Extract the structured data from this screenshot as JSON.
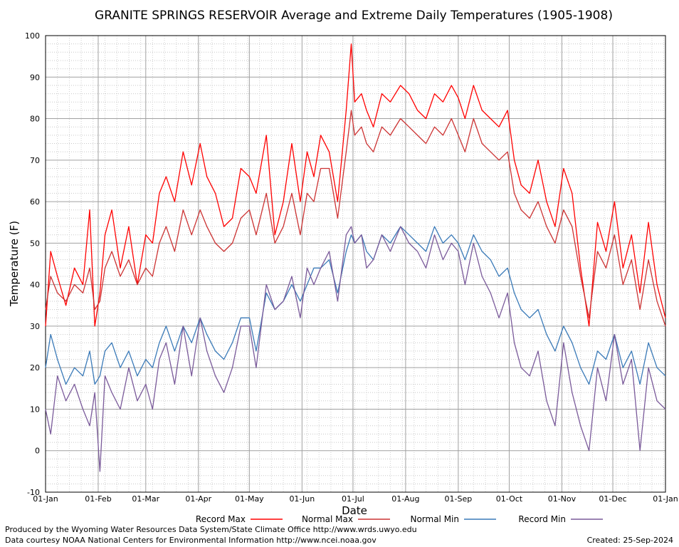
{
  "footer": {
    "produced_by": "Produced by the Wyoming Water Resources Data System/State Climate Office http://www.wrds.uwyo.edu",
    "courtesy": "Data courtesy NOAA National Centers for Environmental Information http://www.ncei.noaa.gov",
    "created": "Created:  25-Sep-2024"
  },
  "colors": {
    "record_max": "#ff0000",
    "normal_max": "#cc3333",
    "normal_min": "#3a7ab8",
    "record_min": "#7a5a9a",
    "grid": "#a0a0a0"
  },
  "chart_data": {
    "type": "line",
    "title": "GRANITE SPRINGS RESERVOIR Average and Extreme Daily Temperatures (1905-1908)",
    "xlabel": "Date",
    "ylabel": "Temperature (F)",
    "ylim": [
      -10,
      100
    ],
    "yticks": [
      -10,
      0,
      10,
      20,
      30,
      40,
      50,
      60,
      70,
      80,
      90,
      100
    ],
    "xlim": [
      1,
      366
    ],
    "xticks": [
      {
        "day": 1,
        "label": "01-Jan"
      },
      {
        "day": 32,
        "label": "01-Feb"
      },
      {
        "day": 60,
        "label": "01-Mar"
      },
      {
        "day": 91,
        "label": "01-Apr"
      },
      {
        "day": 121,
        "label": "01-May"
      },
      {
        "day": 152,
        "label": "01-Jun"
      },
      {
        "day": 182,
        "label": "01-Jul"
      },
      {
        "day": 213,
        "label": "01-Aug"
      },
      {
        "day": 244,
        "label": "01-Sep"
      },
      {
        "day": 274,
        "label": "01-Oct"
      },
      {
        "day": 305,
        "label": "01-Nov"
      },
      {
        "day": 335,
        "label": "01-Dec"
      },
      {
        "day": 366,
        "label": "01-Jan"
      }
    ],
    "grid": true,
    "legend_position": "bottom",
    "series": [
      {
        "name": "Record Max",
        "color_key": "record_max",
        "x": [
          1,
          4,
          8,
          13,
          18,
          23,
          27,
          30,
          33,
          36,
          40,
          45,
          50,
          55,
          60,
          64,
          68,
          72,
          77,
          82,
          87,
          92,
          96,
          101,
          106,
          111,
          116,
          121,
          125,
          131,
          136,
          141,
          146,
          151,
          155,
          159,
          163,
          168,
          173,
          178,
          181,
          183,
          187,
          190,
          194,
          199,
          204,
          210,
          215,
          220,
          225,
          230,
          235,
          240,
          244,
          248,
          253,
          258,
          263,
          268,
          273,
          277,
          281,
          286,
          291,
          296,
          301,
          306,
          311,
          316,
          321,
          326,
          331,
          336,
          341,
          346,
          351,
          356,
          361,
          366
        ],
        "y": [
          30,
          48,
          42,
          35,
          44,
          40,
          58,
          30,
          38,
          52,
          58,
          44,
          54,
          40,
          52,
          50,
          62,
          66,
          60,
          72,
          64,
          74,
          66,
          62,
          54,
          56,
          68,
          66,
          62,
          76,
          52,
          60,
          74,
          60,
          72,
          66,
          76,
          72,
          60,
          82,
          98,
          84,
          86,
          82,
          78,
          86,
          84,
          88,
          86,
          82,
          80,
          86,
          84,
          88,
          85,
          80,
          88,
          82,
          80,
          78,
          82,
          70,
          64,
          62,
          70,
          60,
          54,
          68,
          62,
          44,
          30,
          55,
          48,
          60,
          44,
          52,
          38,
          55,
          40,
          32
        ]
      },
      {
        "name": "Normal Max",
        "color_key": "normal_max",
        "x": [
          1,
          4,
          8,
          13,
          18,
          23,
          27,
          30,
          33,
          36,
          40,
          45,
          50,
          55,
          60,
          64,
          68,
          72,
          77,
          82,
          87,
          92,
          96,
          101,
          106,
          111,
          116,
          121,
          125,
          131,
          136,
          141,
          146,
          151,
          155,
          159,
          163,
          168,
          173,
          178,
          181,
          183,
          187,
          190,
          194,
          199,
          204,
          210,
          215,
          220,
          225,
          230,
          235,
          240,
          244,
          248,
          253,
          258,
          263,
          268,
          273,
          277,
          281,
          286,
          291,
          296,
          301,
          306,
          311,
          316,
          321,
          326,
          331,
          336,
          341,
          346,
          351,
          356,
          361,
          366
        ],
        "y": [
          34,
          42,
          38,
          36,
          40,
          38,
          44,
          34,
          36,
          44,
          48,
          42,
          46,
          40,
          44,
          42,
          50,
          54,
          48,
          58,
          52,
          58,
          54,
          50,
          48,
          50,
          56,
          58,
          52,
          62,
          50,
          54,
          62,
          52,
          62,
          60,
          68,
          68,
          56,
          72,
          82,
          76,
          78,
          74,
          72,
          78,
          76,
          80,
          78,
          76,
          74,
          78,
          76,
          80,
          76,
          72,
          80,
          74,
          72,
          70,
          72,
          62,
          58,
          56,
          60,
          54,
          50,
          58,
          54,
          42,
          32,
          48,
          44,
          52,
          40,
          46,
          34,
          46,
          36,
          30
        ]
      },
      {
        "name": "Normal Min",
        "color_key": "normal_min",
        "x": [
          1,
          4,
          8,
          13,
          18,
          23,
          27,
          30,
          33,
          36,
          40,
          45,
          50,
          55,
          60,
          64,
          68,
          72,
          77,
          82,
          87,
          92,
          96,
          101,
          106,
          111,
          116,
          121,
          125,
          131,
          136,
          141,
          146,
          151,
          155,
          159,
          163,
          168,
          173,
          178,
          181,
          183,
          187,
          190,
          194,
          199,
          204,
          210,
          215,
          220,
          225,
          230,
          235,
          240,
          244,
          248,
          253,
          258,
          263,
          268,
          273,
          277,
          281,
          286,
          291,
          296,
          301,
          306,
          311,
          316,
          321,
          326,
          331,
          336,
          341,
          346,
          351,
          356,
          361,
          366
        ],
        "y": [
          20,
          28,
          22,
          16,
          20,
          18,
          24,
          16,
          18,
          24,
          26,
          20,
          24,
          18,
          22,
          20,
          26,
          30,
          24,
          30,
          26,
          32,
          28,
          24,
          22,
          26,
          32,
          32,
          24,
          38,
          34,
          36,
          40,
          36,
          40,
          44,
          44,
          46,
          38,
          48,
          52,
          50,
          52,
          48,
          46,
          52,
          50,
          54,
          52,
          50,
          48,
          54,
          50,
          52,
          50,
          46,
          52,
          48,
          46,
          42,
          44,
          38,
          34,
          32,
          34,
          28,
          24,
          30,
          26,
          20,
          16,
          24,
          22,
          28,
          20,
          24,
          16,
          26,
          20,
          18
        ]
      },
      {
        "name": "Record Min",
        "color_key": "record_min",
        "x": [
          1,
          4,
          8,
          13,
          18,
          23,
          27,
          30,
          33,
          36,
          40,
          45,
          50,
          55,
          60,
          64,
          68,
          72,
          77,
          82,
          87,
          92,
          96,
          101,
          106,
          111,
          116,
          121,
          125,
          131,
          136,
          141,
          146,
          151,
          155,
          159,
          163,
          168,
          173,
          178,
          181,
          183,
          187,
          190,
          194,
          199,
          204,
          210,
          215,
          220,
          225,
          230,
          235,
          240,
          244,
          248,
          253,
          258,
          263,
          268,
          273,
          277,
          281,
          286,
          291,
          296,
          301,
          306,
          311,
          316,
          321,
          326,
          331,
          336,
          341,
          346,
          351,
          356,
          361,
          366
        ],
        "y": [
          10,
          4,
          18,
          12,
          16,
          10,
          6,
          14,
          -5,
          18,
          14,
          10,
          20,
          12,
          16,
          10,
          22,
          26,
          16,
          30,
          18,
          32,
          24,
          18,
          14,
          20,
          30,
          30,
          20,
          40,
          34,
          36,
          42,
          32,
          44,
          40,
          44,
          48,
          36,
          52,
          54,
          50,
          52,
          44,
          46,
          52,
          48,
          54,
          50,
          48,
          44,
          52,
          46,
          50,
          48,
          40,
          50,
          42,
          38,
          32,
          38,
          26,
          20,
          18,
          24,
          12,
          6,
          26,
          14,
          6,
          0,
          20,
          12,
          28,
          16,
          22,
          0,
          20,
          12,
          10
        ]
      }
    ]
  }
}
